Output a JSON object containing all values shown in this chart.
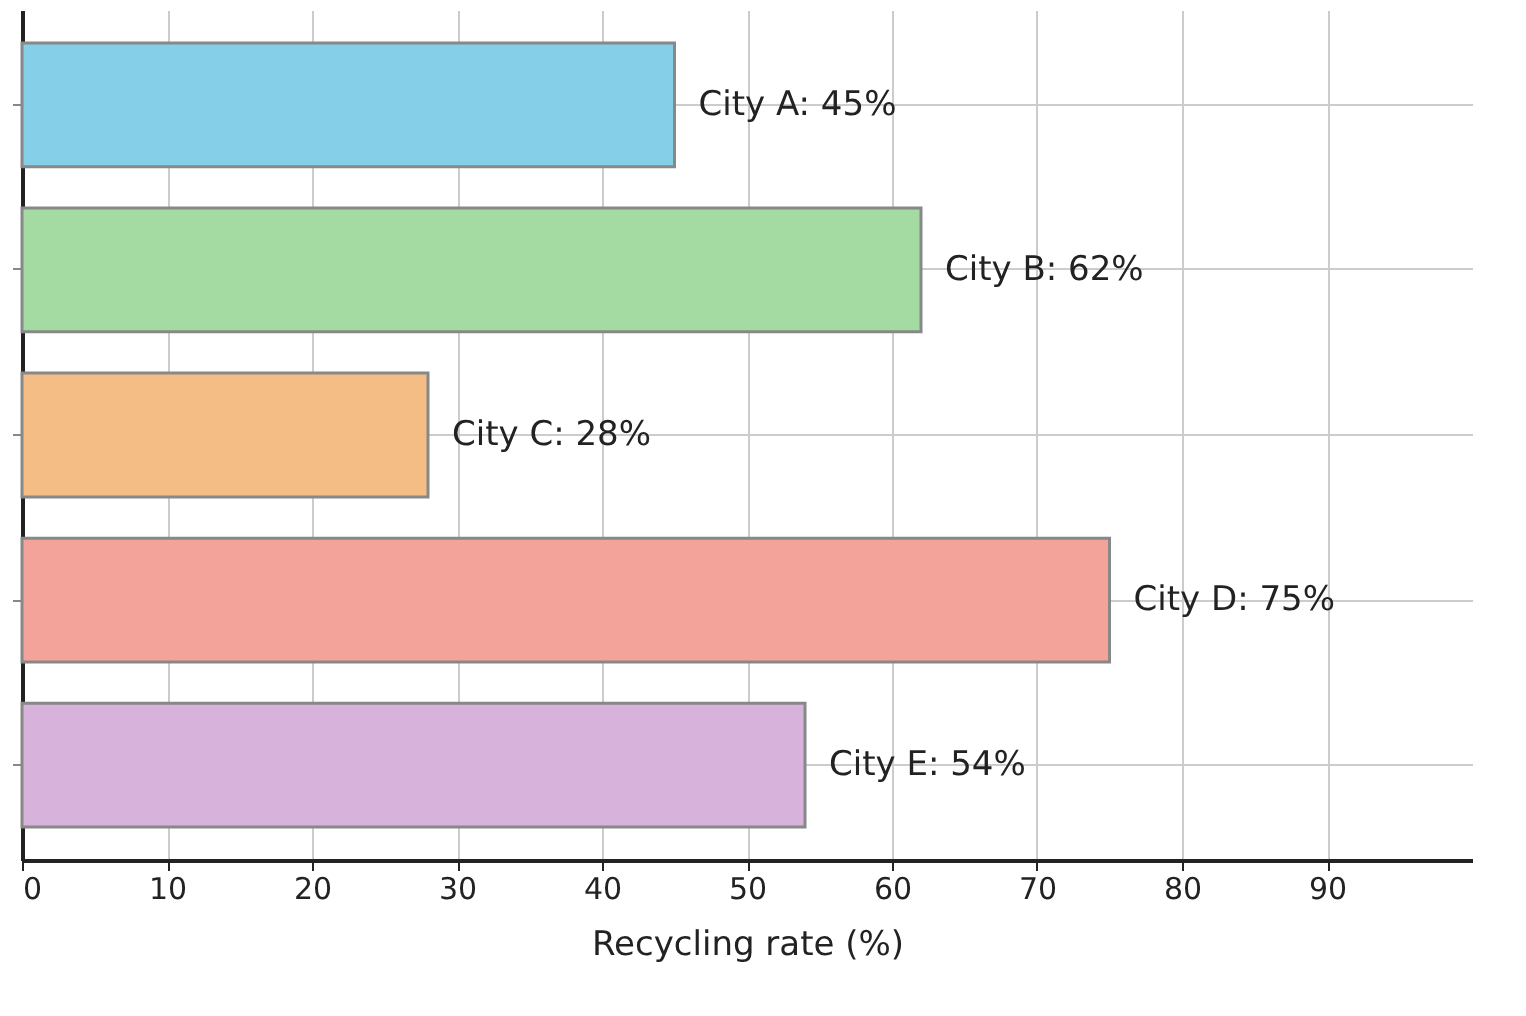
{
  "chart_data": {
    "type": "bar",
    "orientation": "horizontal",
    "xlabel": "Recycling rate (%)",
    "categories": [
      null,
      null,
      null,
      null,
      null
    ],
    "values": [
      45,
      62,
      28,
      75,
      54
    ],
    "colors": [
      "#85cfe8",
      "#a3dba3",
      "#f3bd85",
      "#f4a39a",
      "#d7b3dc"
    ],
    "value_labels": [
      "City A: 45%",
      "City B: 62%",
      "City C: 28%",
      "City D: 75%",
      "City E: 54%"
    ],
    "xlim": [
      0,
      100
    ],
    "xticks": [
      0,
      10,
      20,
      30,
      40,
      50,
      60,
      70,
      80,
      90
    ],
    "grid": true,
    "legend": false
  }
}
